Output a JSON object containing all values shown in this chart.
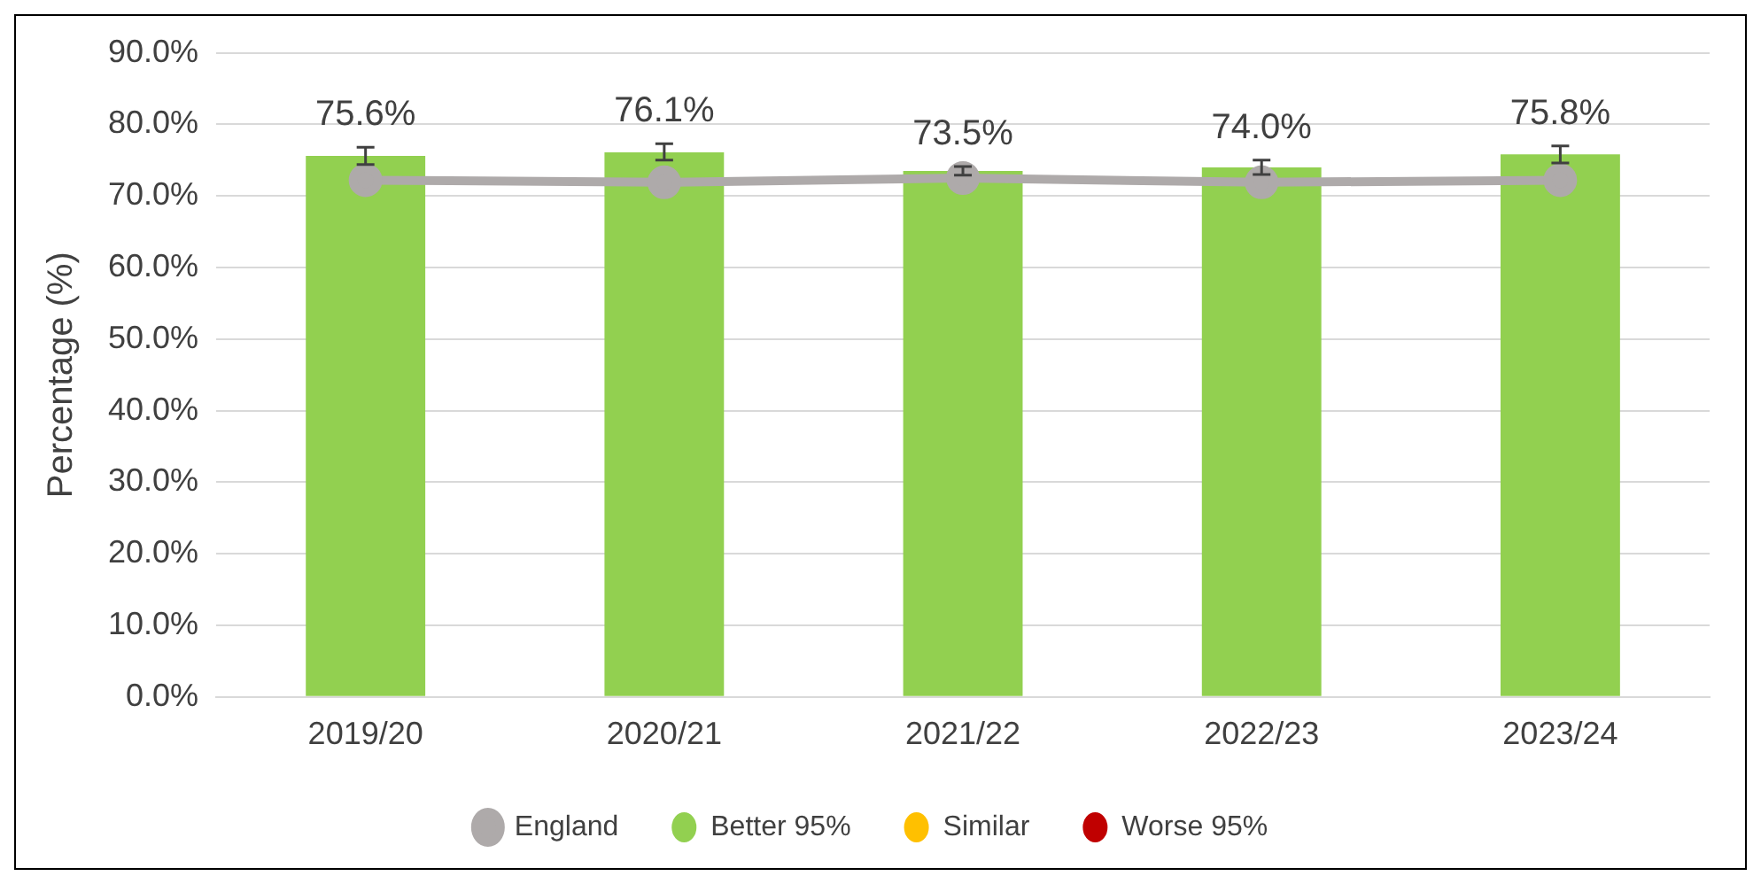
{
  "chart_data": {
    "type": "bar",
    "ylabel": "Percentage (%)",
    "categories": [
      "2019/20",
      "2020/21",
      "2021/22",
      "2022/23",
      "2023/24"
    ],
    "series": [
      {
        "name": "England",
        "type": "line",
        "color": "#aeaaaa",
        "marker": "circle",
        "values": [
          72.2,
          71.9,
          72.5,
          71.9,
          72.2
        ]
      },
      {
        "name": "Better 95%",
        "color": "#92d050",
        "values": [
          75.6,
          76.1,
          73.5,
          74.0,
          75.8
        ],
        "value_labels": [
          "75.6%",
          "76.1%",
          "73.5%",
          "74.0%",
          "75.8%"
        ],
        "errors": [
          [
            74.4,
            76.8
          ],
          [
            75.0,
            77.3
          ],
          [
            72.9,
            74.1
          ],
          [
            73.0,
            75.0
          ],
          [
            74.6,
            77.0
          ]
        ]
      },
      {
        "name": "Similar",
        "color": "#ffc000",
        "values": [
          null,
          null,
          null,
          null,
          null
        ]
      },
      {
        "name": "Worse 95%",
        "color": "#c00000",
        "values": [
          null,
          null,
          null,
          null,
          null
        ]
      }
    ],
    "ylim": [
      0,
      90
    ],
    "yticks": [
      {
        "value": 0,
        "label": "0.0%"
      },
      {
        "value": 10,
        "label": "10.0%"
      },
      {
        "value": 20,
        "label": "20.0%"
      },
      {
        "value": 30,
        "label": "30.0%"
      },
      {
        "value": 40,
        "label": "40.0%"
      },
      {
        "value": 50,
        "label": "50.0%"
      },
      {
        "value": 60,
        "label": "60.0%"
      },
      {
        "value": 70,
        "label": "70.0%"
      },
      {
        "value": 80,
        "label": "80.0%"
      },
      {
        "value": 90,
        "label": "90.0%"
      }
    ],
    "grid": "y",
    "legend": "bottom"
  }
}
